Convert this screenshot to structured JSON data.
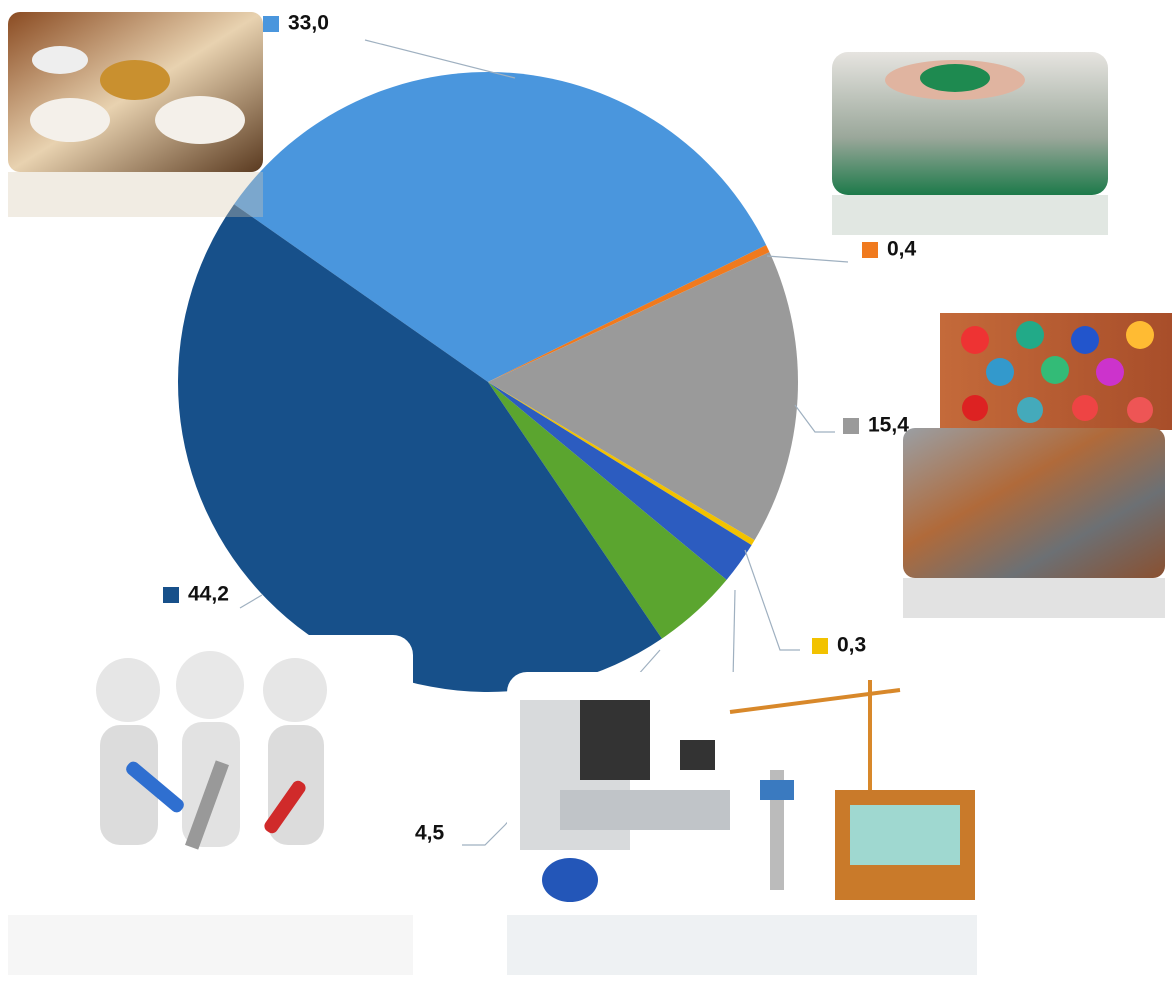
{
  "chart_data": {
    "type": "pie",
    "values": [
      33.0,
      0.4,
      15.4,
      0.3,
      2.2,
      4.5,
      44.2
    ],
    "value_labels": [
      "33,0",
      "0,4",
      "15,4",
      "0,3",
      null,
      "4,5",
      "44,2"
    ],
    "colors": [
      "#4a96dd",
      "#f07a1e",
      "#9a9a9a",
      "#f2c200",
      "#2c5cc0",
      "#5ba52f",
      "#17508a"
    ]
  }
}
